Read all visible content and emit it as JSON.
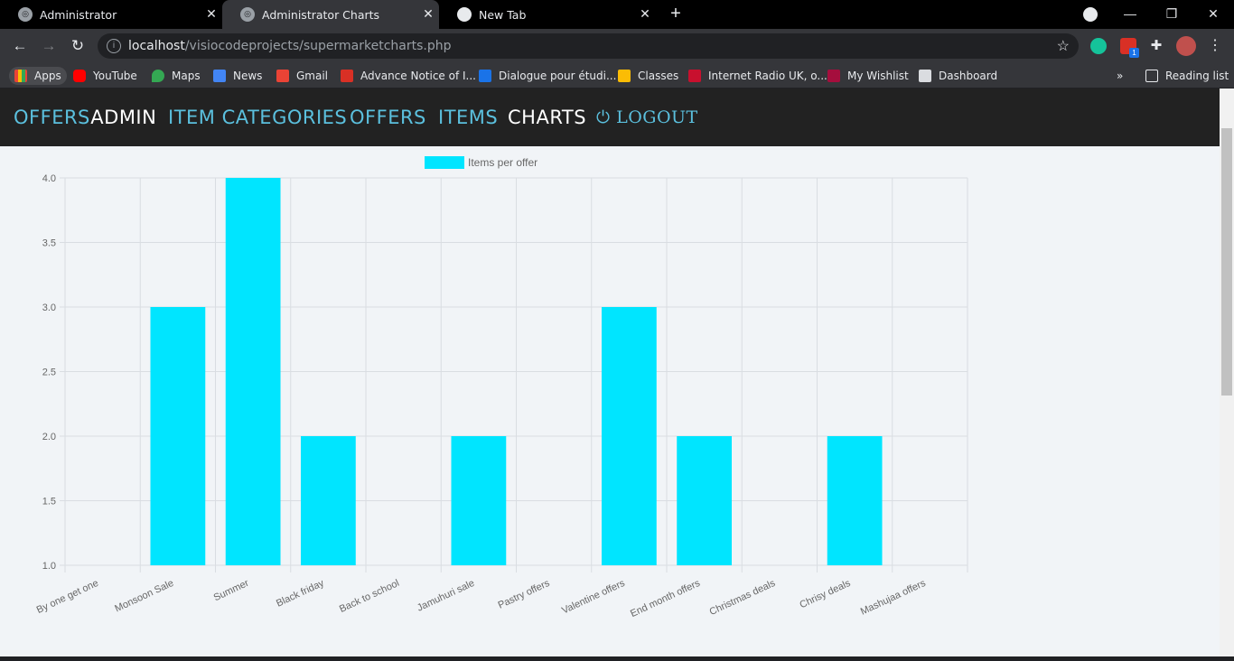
{
  "browser": {
    "tabs": [
      {
        "title": "Administrator",
        "active": false
      },
      {
        "title": "Administrator Charts",
        "active": true
      },
      {
        "title": "New Tab",
        "active": false
      }
    ],
    "url_host": "localhost",
    "url_path": "/visiocodeprojects/supermarketcharts.php",
    "bookmarks": [
      "Apps",
      "YouTube",
      "Maps",
      "News",
      "Gmail",
      "Advance Notice of I...",
      "Dialogue pour étudi...",
      "Classes",
      "Internet Radio UK, o...",
      "My Wishlist",
      "Dashboard"
    ],
    "reading_list": "Reading list",
    "ext_badge": "1"
  },
  "nav": {
    "brand_part1": "OFFERS",
    "brand_part2": "ADMIN",
    "item_categories": "ITEM CATEGORIES",
    "offers": "OFFERS",
    "items": "ITEMS",
    "charts": "CHARTS",
    "logout": "LOGOUT"
  },
  "colors": {
    "bar": "#00e5ff",
    "nav_link": "#5bc0de"
  },
  "chart_data": {
    "type": "bar",
    "categories": [
      "By one get one",
      "Monsoon Sale",
      "Summer",
      "Black friday",
      "Back to school",
      "Jamuhuri sale",
      "Pastry offers",
      "Valentine offers",
      "End month offers",
      "Christmas deals",
      "Chrisy deals",
      "Mashujaa offers"
    ],
    "series": [
      {
        "name": "Items per offer",
        "values": [
          1,
          3,
          4,
          2,
          1,
          2,
          1,
          3,
          2,
          1,
          2,
          1
        ]
      }
    ],
    "ylim": [
      1,
      4
    ],
    "yticks": [
      "1.0",
      "1.5",
      "2.0",
      "2.5",
      "3.0",
      "3.5",
      "4.0"
    ],
    "grid": true,
    "legend": "top"
  }
}
